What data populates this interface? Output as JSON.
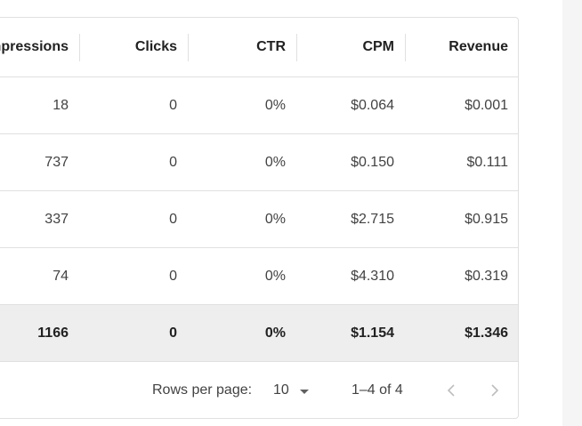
{
  "table": {
    "columns": {
      "impressions": "Impressions",
      "clicks": "Clicks",
      "ctr": "CTR",
      "cpm": "CPM",
      "revenue": "Revenue"
    },
    "rows": [
      {
        "impressions": "18",
        "clicks": "0",
        "ctr": "0%",
        "cpm": "$0.064",
        "revenue": "$0.001"
      },
      {
        "impressions": "737",
        "clicks": "0",
        "ctr": "0%",
        "cpm": "$0.150",
        "revenue": "$0.111"
      },
      {
        "impressions": "337",
        "clicks": "0",
        "ctr": "0%",
        "cpm": "$2.715",
        "revenue": "$0.915"
      },
      {
        "impressions": "74",
        "clicks": "0",
        "ctr": "0%",
        "cpm": "$4.310",
        "revenue": "$0.319"
      }
    ],
    "total": {
      "impressions": "1166",
      "clicks": "0",
      "ctr": "0%",
      "cpm": "$1.154",
      "revenue": "$1.346"
    }
  },
  "pagination": {
    "rows_per_page_label": "Rows per page:",
    "rows_per_page_value": "10",
    "range_label": "1–4 of 4",
    "prev_icon": "chevron-left-icon",
    "next_icon": "chevron-right-icon"
  },
  "colors": {
    "border": "#e0e0e0",
    "total_row_bg": "#eeeeee",
    "side_panel_bg": "#f5f5f5",
    "disabled_icon": "#bdbdbd"
  }
}
